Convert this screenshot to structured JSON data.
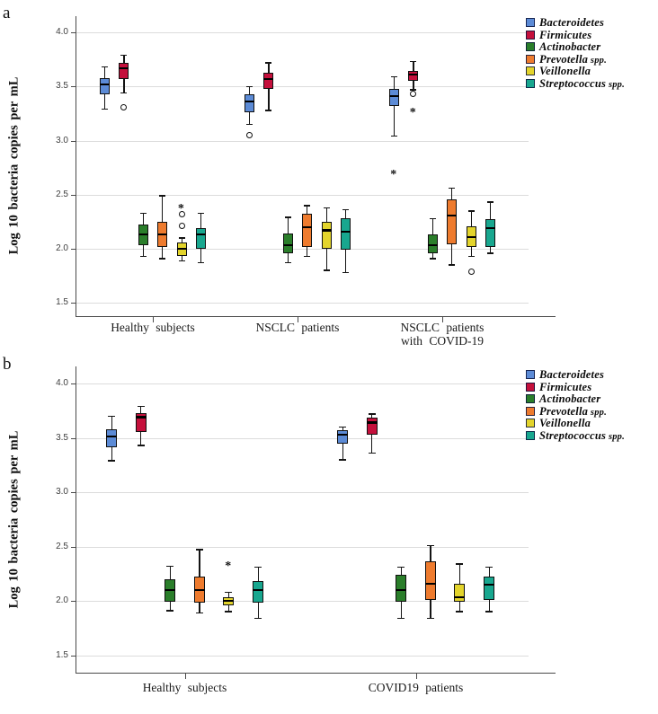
{
  "figure": {
    "type": "two-panel box plot figure",
    "background": "#ffffff"
  },
  "chart_data": [
    {
      "type": "boxplot",
      "panel": "a",
      "ylabel": "Log 10 bacteria copies per mL",
      "ylim": [
        1.4,
        4.15
      ],
      "yticks": [
        4.0,
        3.5,
        3.0,
        2.5,
        2.0,
        1.5
      ],
      "grid": true,
      "legend_position": "top-right",
      "categories": [
        "Healthy subjects",
        "NSCLC patients",
        "NSCLC patients\nwith COVID-19"
      ],
      "series": [
        {
          "name": "Bacteroidetes",
          "suffix": "",
          "color": "#5C8BD6",
          "boxes": [
            {
              "whislo": 3.29,
              "q1": 3.43,
              "med": 3.52,
              "q3": 3.58,
              "whishi": 3.68,
              "outliers": [],
              "extremes": []
            },
            {
              "whislo": 3.15,
              "q1": 3.26,
              "med": 3.36,
              "q3": 3.43,
              "whishi": 3.5,
              "outliers": [
                3.05
              ],
              "extremes": []
            },
            {
              "whislo": 3.04,
              "q1": 3.32,
              "med": 3.41,
              "q3": 3.48,
              "whishi": 3.59,
              "outliers": [],
              "extremes": [
                2.71
              ]
            }
          ]
        },
        {
          "name": "Firmicutes",
          "suffix": "",
          "color": "#C5103C",
          "boxes": [
            {
              "whislo": 3.44,
              "q1": 3.57,
              "med": 3.67,
              "q3": 3.72,
              "whishi": 3.79,
              "outliers": [
                3.31
              ],
              "extremes": []
            },
            {
              "whislo": 3.28,
              "q1": 3.48,
              "med": 3.57,
              "q3": 3.63,
              "whishi": 3.72,
              "outliers": [],
              "extremes": []
            },
            {
              "whislo": 3.47,
              "q1": 3.55,
              "med": 3.61,
              "q3": 3.64,
              "whishi": 3.73,
              "outliers": [
                3.43
              ],
              "extremes": [
                3.29
              ]
            }
          ]
        },
        {
          "name": "Actinobacter",
          "suffix": "",
          "color": "#2A7E2A",
          "boxes": [
            {
              "whislo": 1.93,
              "q1": 2.03,
              "med": 2.13,
              "q3": 2.22,
              "whishi": 2.33,
              "outliers": [],
              "extremes": []
            },
            {
              "whislo": 1.87,
              "q1": 1.96,
              "med": 2.03,
              "q3": 2.14,
              "whishi": 2.29,
              "outliers": [],
              "extremes": []
            },
            {
              "whislo": 1.91,
              "q1": 1.96,
              "med": 2.03,
              "q3": 2.13,
              "whishi": 2.28,
              "outliers": [],
              "extremes": []
            }
          ]
        },
        {
          "name": "Prevotella",
          "suffix": " spp.",
          "color": "#EE7B2E",
          "boxes": [
            {
              "whislo": 1.91,
              "q1": 2.02,
              "med": 2.13,
              "q3": 2.25,
              "whishi": 2.49,
              "outliers": [],
              "extremes": []
            },
            {
              "whislo": 1.93,
              "q1": 2.02,
              "med": 2.2,
              "q3": 2.32,
              "whishi": 2.4,
              "outliers": [],
              "extremes": []
            },
            {
              "whislo": 1.85,
              "q1": 2.04,
              "med": 2.31,
              "q3": 2.46,
              "whishi": 2.56,
              "outliers": [],
              "extremes": []
            }
          ]
        },
        {
          "name": "Veillonella",
          "suffix": "",
          "color": "#E3D42C",
          "boxes": [
            {
              "whislo": 1.89,
              "q1": 1.93,
              "med": 2.0,
              "q3": 2.06,
              "whishi": 2.1,
              "outliers": [
                2.21,
                2.32
              ],
              "extremes": [
                2.4
              ]
            },
            {
              "whislo": 1.8,
              "q1": 2.0,
              "med": 2.17,
              "q3": 2.25,
              "whishi": 2.38,
              "outliers": [],
              "extremes": []
            },
            {
              "whislo": 1.93,
              "q1": 2.02,
              "med": 2.11,
              "q3": 2.21,
              "whishi": 2.35,
              "outliers": [
                1.79
              ],
              "extremes": []
            }
          ]
        },
        {
          "name": "Streptococcus",
          "suffix": " spp.",
          "color": "#18A78F",
          "boxes": [
            {
              "whislo": 1.87,
              "q1": 2.0,
              "med": 2.13,
              "q3": 2.19,
              "whishi": 2.33,
              "outliers": [],
              "extremes": []
            },
            {
              "whislo": 1.78,
              "q1": 1.99,
              "med": 2.16,
              "q3": 2.28,
              "whishi": 2.36,
              "outliers": [],
              "extremes": []
            },
            {
              "whislo": 1.96,
              "q1": 2.02,
              "med": 2.19,
              "q3": 2.27,
              "whishi": 2.43,
              "outliers": [],
              "extremes": []
            }
          ]
        }
      ]
    },
    {
      "type": "boxplot",
      "panel": "b",
      "ylabel": "Log 10 bacteria copies per mL",
      "ylim": [
        1.4,
        4.15
      ],
      "yticks": [
        4.0,
        3.5,
        3.0,
        2.5,
        2.0,
        1.5
      ],
      "grid": true,
      "legend_position": "top-right",
      "categories": [
        "Healthy subjects",
        "COVID19 patients"
      ],
      "series": [
        {
          "name": "Bacteroidetes",
          "suffix": "",
          "color": "#5C8BD6",
          "boxes": [
            {
              "whislo": 3.29,
              "q1": 3.41,
              "med": 3.51,
              "q3": 3.58,
              "whishi": 3.7,
              "outliers": [],
              "extremes": []
            },
            {
              "whislo": 3.3,
              "q1": 3.45,
              "med": 3.53,
              "q3": 3.57,
              "whishi": 3.6,
              "outliers": [],
              "extremes": []
            }
          ]
        },
        {
          "name": "Firmicutes",
          "suffix": "",
          "color": "#C5103C",
          "boxes": [
            {
              "whislo": 3.43,
              "q1": 3.55,
              "med": 3.69,
              "q3": 3.73,
              "whishi": 3.79,
              "outliers": [],
              "extremes": []
            },
            {
              "whislo": 3.36,
              "q1": 3.53,
              "med": 3.64,
              "q3": 3.69,
              "whishi": 3.72,
              "outliers": [],
              "extremes": []
            }
          ]
        },
        {
          "name": "Actinobacter",
          "suffix": "",
          "color": "#2A7E2A",
          "boxes": [
            {
              "whislo": 1.91,
              "q1": 1.99,
              "med": 2.1,
              "q3": 2.2,
              "whishi": 2.32,
              "outliers": [],
              "extremes": []
            },
            {
              "whislo": 1.84,
              "q1": 1.99,
              "med": 2.1,
              "q3": 2.24,
              "whishi": 2.31,
              "outliers": [],
              "extremes": []
            }
          ]
        },
        {
          "name": "Prevotella",
          "suffix": " spp.",
          "color": "#EE7B2E",
          "boxes": [
            {
              "whislo": 1.89,
              "q1": 1.98,
              "med": 2.1,
              "q3": 2.22,
              "whishi": 2.47,
              "outliers": [],
              "extremes": []
            },
            {
              "whislo": 1.84,
              "q1": 2.01,
              "med": 2.16,
              "q3": 2.36,
              "whishi": 2.51,
              "outliers": [],
              "extremes": []
            }
          ]
        },
        {
          "name": "Veillonella",
          "suffix": "",
          "color": "#E3D42C",
          "boxes": [
            {
              "whislo": 1.9,
              "q1": 1.96,
              "med": 2.0,
              "q3": 2.03,
              "whishi": 2.08,
              "outliers": [],
              "extremes": [
                2.35
              ]
            },
            {
              "whislo": 1.9,
              "q1": 1.99,
              "med": 2.03,
              "q3": 2.16,
              "whishi": 2.34,
              "outliers": [],
              "extremes": []
            }
          ]
        },
        {
          "name": "Streptococcus",
          "suffix": " spp.",
          "color": "#18A78F",
          "boxes": [
            {
              "whislo": 1.84,
              "q1": 1.98,
              "med": 2.1,
              "q3": 2.18,
              "whishi": 2.31,
              "outliers": [],
              "extremes": []
            },
            {
              "whislo": 1.9,
              "q1": 2.01,
              "med": 2.15,
              "q3": 2.22,
              "whishi": 2.31,
              "outliers": [],
              "extremes": []
            }
          ]
        }
      ]
    }
  ]
}
